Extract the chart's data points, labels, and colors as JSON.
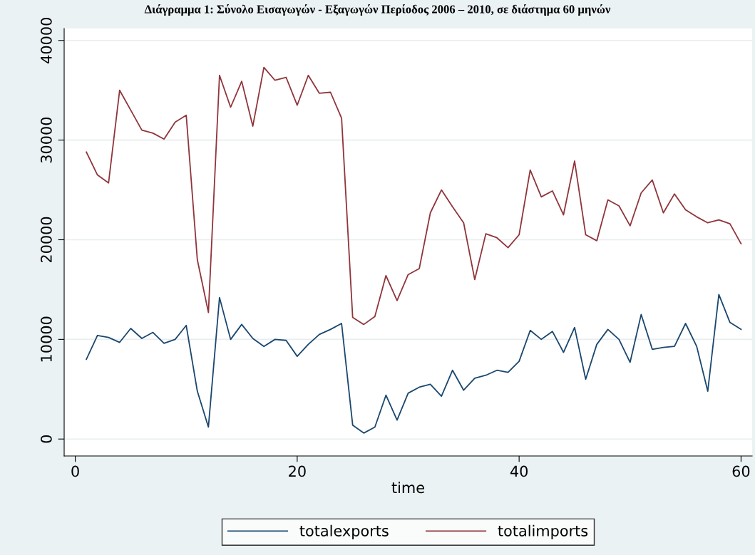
{
  "chart_data": {
    "type": "line",
    "title": "Διάγραμμα 1: Σύνολο Εισαγωγών - Εξαγωγών Περίοδος 2006 – 2010, σε διάστημα 60 μηνών",
    "xlabel": "time",
    "x": [
      1,
      2,
      3,
      4,
      5,
      6,
      7,
      8,
      9,
      10,
      11,
      12,
      13,
      14,
      15,
      16,
      17,
      18,
      19,
      20,
      21,
      22,
      23,
      24,
      25,
      26,
      27,
      28,
      29,
      30,
      31,
      32,
      33,
      34,
      35,
      36,
      37,
      38,
      39,
      40,
      41,
      42,
      43,
      44,
      45,
      46,
      47,
      48,
      49,
      50,
      51,
      52,
      53,
      54,
      55,
      56,
      57,
      58,
      59,
      60
    ],
    "series": [
      {
        "name": "totalexports",
        "color": "#1a476f",
        "values": [
          8000,
          10400,
          10200,
          9700,
          11100,
          10100,
          10700,
          9600,
          10000,
          11400,
          4800,
          1200,
          14200,
          10000,
          11500,
          10100,
          9300,
          10000,
          9900,
          8300,
          9500,
          10500,
          11000,
          11600,
          1400,
          600,
          1200,
          4400,
          1900,
          4600,
          5200,
          5500,
          4300,
          6900,
          4900,
          6100,
          6400,
          6900,
          6700,
          7800,
          10900,
          10000,
          10800,
          8700,
          11200,
          6000,
          9500,
          11000,
          10000,
          7700,
          12500,
          9000,
          9200,
          9300,
          11600,
          9300,
          4800,
          14500,
          11700,
          11000
        ]
      },
      {
        "name": "totalimports",
        "color": "#90353b",
        "values": [
          28800,
          26500,
          25700,
          35000,
          33000,
          31000,
          30700,
          30100,
          31800,
          32500,
          18000,
          12700,
          36500,
          33300,
          35900,
          31400,
          37300,
          36000,
          36300,
          33500,
          36500,
          34700,
          34800,
          32200,
          12200,
          11500,
          12300,
          16400,
          13900,
          16500,
          17100,
          22700,
          25000,
          23300,
          21700,
          16000,
          20600,
          20200,
          19200,
          20500,
          27000,
          24300,
          24900,
          22500,
          27900,
          20500,
          19900,
          24000,
          23400,
          21400,
          24700,
          26000,
          22700,
          24600,
          23000,
          22300,
          21700,
          22000,
          21600,
          19600
        ]
      }
    ],
    "xlim": [
      -1,
      61
    ],
    "ylim": [
      -1700,
      41200
    ],
    "xticks": [
      0,
      20,
      40,
      60
    ],
    "yticks": [
      0,
      10000,
      20000,
      30000,
      40000
    ],
    "grid": "y",
    "legend": "bottom",
    "marker": "none",
    "line_style": "solid"
  }
}
